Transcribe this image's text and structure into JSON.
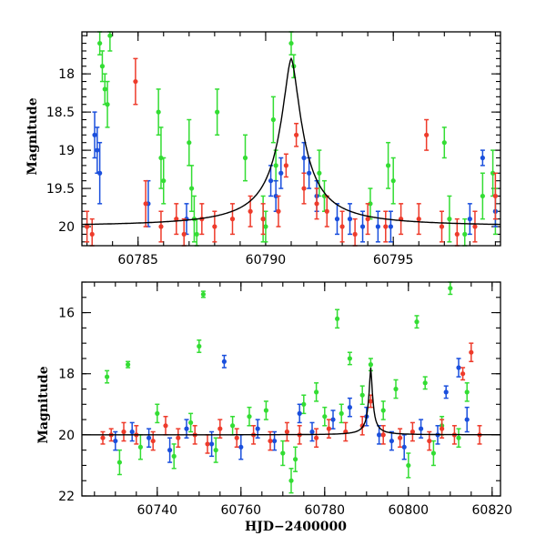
{
  "chart_data": [
    {
      "type": "scatter",
      "panel": "top",
      "ylabel": "Magnitude",
      "xlabel": "",
      "xlim": [
        60782.8,
        60799.2
      ],
      "ylim": [
        20.25,
        17.45
      ],
      "y_inverted": true,
      "xticks": [
        "60785",
        "60790",
        "60795"
      ],
      "yticks": [
        "18",
        "18.5",
        "19",
        "19.5",
        "20"
      ],
      "colors": {
        "g": "#33dd33",
        "b": "#1a4fdd",
        "r": "#ee3b2b"
      },
      "model_curve": {
        "baseline_mag": 20.0,
        "peak_mag": 17.8,
        "peak_time": 60791.0
      },
      "series": [
        {
          "color_key": "g",
          "points": [
            [
              60783.5,
              17.6,
              0.15
            ],
            [
              60783.6,
              17.9,
              0.2
            ],
            [
              60783.7,
              18.2,
              0.2
            ],
            [
              60783.8,
              18.4,
              0.3
            ],
            [
              60783.9,
              17.5,
              0.2
            ],
            [
              60785.8,
              18.5,
              0.3
            ],
            [
              60785.9,
              19.1,
              0.4
            ],
            [
              60786.0,
              19.4,
              0.3
            ],
            [
              60787.0,
              18.9,
              0.3
            ],
            [
              60787.1,
              19.5,
              0.3
            ],
            [
              60787.2,
              19.9,
              0.3
            ],
            [
              60787.3,
              20.1,
              0.2
            ],
            [
              60788.1,
              18.5,
              0.3
            ],
            [
              60789.2,
              19.1,
              0.3
            ],
            [
              60789.9,
              19.9,
              0.3
            ],
            [
              60790.0,
              20.0,
              0.2
            ],
            [
              60790.3,
              18.6,
              0.3
            ],
            [
              60790.4,
              19.2,
              0.2
            ],
            [
              60791.0,
              17.6,
              0.15
            ],
            [
              60791.1,
              17.9,
              0.15
            ],
            [
              60792.1,
              19.3,
              0.3
            ],
            [
              60792.3,
              19.6,
              0.2
            ],
            [
              60794.1,
              19.7,
              0.2
            ],
            [
              60794.8,
              19.2,
              0.3
            ],
            [
              60795.0,
              19.4,
              0.3
            ],
            [
              60797.0,
              18.9,
              0.2
            ],
            [
              60797.2,
              19.9,
              0.3
            ],
            [
              60797.8,
              20.1,
              0.2
            ],
            [
              60798.5,
              19.6,
              0.3
            ],
            [
              60798.9,
              19.3,
              0.3
            ],
            [
              60799.0,
              19.8,
              0.3
            ]
          ]
        },
        {
          "color_key": "b",
          "points": [
            [
              60783.3,
              18.8,
              0.3
            ],
            [
              60783.4,
              19.0,
              0.3
            ],
            [
              60783.5,
              19.3,
              0.4
            ],
            [
              60785.4,
              19.7,
              0.3
            ],
            [
              60786.9,
              19.9,
              0.2
            ],
            [
              60790.2,
              19.4,
              0.2
            ],
            [
              60790.4,
              19.6,
              0.2
            ],
            [
              60790.6,
              19.3,
              0.2
            ],
            [
              60791.5,
              19.1,
              0.2
            ],
            [
              60791.7,
              19.3,
              0.2
            ],
            [
              60792.0,
              19.6,
              0.2
            ],
            [
              60792.8,
              19.9,
              0.2
            ],
            [
              60793.3,
              19.9,
              0.2
            ],
            [
              60793.8,
              20.0,
              0.2
            ],
            [
              60794.4,
              20.0,
              0.2
            ],
            [
              60794.9,
              20.0,
              0.2
            ],
            [
              60798.0,
              19.9,
              0.2
            ],
            [
              60798.5,
              19.1,
              0.1
            ],
            [
              60799.0,
              19.8,
              0.2
            ]
          ]
        },
        {
          "color_key": "r",
          "points": [
            [
              60783.0,
              20.0,
              0.2
            ],
            [
              60783.2,
              20.1,
              0.2
            ],
            [
              60784.9,
              18.1,
              0.3
            ],
            [
              60785.3,
              19.7,
              0.3
            ],
            [
              60785.9,
              20.0,
              0.2
            ],
            [
              60786.5,
              19.9,
              0.2
            ],
            [
              60786.8,
              20.1,
              0.2
            ],
            [
              60787.5,
              19.9,
              0.2
            ],
            [
              60788.0,
              20.0,
              0.2
            ],
            [
              60788.7,
              19.9,
              0.2
            ],
            [
              60789.4,
              19.8,
              0.2
            ],
            [
              60789.9,
              19.9,
              0.2
            ],
            [
              60790.5,
              19.8,
              0.2
            ],
            [
              60790.8,
              19.2,
              0.15
            ],
            [
              60791.2,
              18.8,
              0.15
            ],
            [
              60791.5,
              19.5,
              0.2
            ],
            [
              60792.0,
              19.7,
              0.2
            ],
            [
              60792.4,
              19.8,
              0.2
            ],
            [
              60793.0,
              20.0,
              0.2
            ],
            [
              60793.5,
              20.1,
              0.2
            ],
            [
              60794.0,
              19.9,
              0.2
            ],
            [
              60794.7,
              20.0,
              0.2
            ],
            [
              60795.3,
              19.9,
              0.2
            ],
            [
              60796.0,
              19.9,
              0.2
            ],
            [
              60796.3,
              18.8,
              0.2
            ],
            [
              60796.9,
              20.0,
              0.2
            ],
            [
              60797.5,
              20.1,
              0.2
            ],
            [
              60798.2,
              20.0,
              0.2
            ],
            [
              60799.0,
              19.6,
              0.3
            ]
          ]
        }
      ]
    },
    {
      "type": "scatter",
      "panel": "bottom",
      "ylabel": "Magnitude",
      "xlabel": "HJD−2400000",
      "xlim": [
        60722,
        60822
      ],
      "ylim": [
        22.0,
        15.0
      ],
      "y_inverted": true,
      "xticks": [
        "60740",
        "60760",
        "60780",
        "60800",
        "60820"
      ],
      "yticks": [
        "16",
        "18",
        "20",
        "22"
      ],
      "colors": {
        "g": "#33dd33",
        "b": "#1a4fdd",
        "r": "#ee3b2b"
      },
      "model_curve": {
        "baseline_mag": 20.0,
        "peak_mag": 17.8,
        "peak_time": 60791.0
      },
      "series": [
        {
          "color_key": "g",
          "points": [
            [
              60728,
              18.1,
              0.2
            ],
            [
              60731,
              20.9,
              0.4
            ],
            [
              60733,
              17.7,
              0.1
            ],
            [
              60736,
              20.4,
              0.4
            ],
            [
              60740,
              19.3,
              0.3
            ],
            [
              60744,
              20.7,
              0.4
            ],
            [
              60748,
              19.6,
              0.3
            ],
            [
              60750,
              17.1,
              0.2
            ],
            [
              60751,
              15.4,
              0.1
            ],
            [
              60754,
              20.5,
              0.4
            ],
            [
              60758,
              19.7,
              0.3
            ],
            [
              60762,
              19.4,
              0.3
            ],
            [
              60766,
              19.2,
              0.3
            ],
            [
              60770,
              20.6,
              0.4
            ],
            [
              60772,
              21.5,
              0.4
            ],
            [
              60773,
              20.8,
              0.4
            ],
            [
              60775,
              19.0,
              0.3
            ],
            [
              60778,
              18.6,
              0.3
            ],
            [
              60780,
              19.4,
              0.3
            ],
            [
              60783,
              16.2,
              0.3
            ],
            [
              60784,
              19.3,
              0.3
            ],
            [
              60786,
              17.5,
              0.2
            ],
            [
              60789,
              18.7,
              0.3
            ],
            [
              60791,
              17.7,
              0.2
            ],
            [
              60794,
              19.2,
              0.3
            ],
            [
              60797,
              18.5,
              0.3
            ],
            [
              60800,
              21.0,
              0.4
            ],
            [
              60802,
              16.3,
              0.2
            ],
            [
              60804,
              18.3,
              0.2
            ],
            [
              60806,
              20.6,
              0.4
            ],
            [
              60808,
              19.7,
              0.3
            ],
            [
              60810,
              15.2,
              0.2
            ],
            [
              60812,
              20.1,
              0.3
            ],
            [
              60814,
              18.6,
              0.3
            ]
          ]
        },
        {
          "color_key": "b",
          "points": [
            [
              60730,
              20.2,
              0.3
            ],
            [
              60734,
              19.9,
              0.3
            ],
            [
              60738,
              20.1,
              0.3
            ],
            [
              60743,
              20.5,
              0.4
            ],
            [
              60747,
              19.8,
              0.3
            ],
            [
              60753,
              20.3,
              0.4
            ],
            [
              60756,
              17.6,
              0.2
            ],
            [
              60760,
              20.4,
              0.4
            ],
            [
              60764,
              19.8,
              0.3
            ],
            [
              60768,
              20.2,
              0.3
            ],
            [
              60774,
              19.3,
              0.3
            ],
            [
              60777,
              19.9,
              0.3
            ],
            [
              60782,
              19.5,
              0.3
            ],
            [
              60786,
              19.1,
              0.3
            ],
            [
              60790,
              19.4,
              0.3
            ],
            [
              60793,
              20.0,
              0.3
            ],
            [
              60796,
              20.2,
              0.3
            ],
            [
              60799,
              20.4,
              0.4
            ],
            [
              60803,
              19.8,
              0.3
            ],
            [
              60807,
              20.0,
              0.3
            ],
            [
              60809,
              18.6,
              0.2
            ],
            [
              60812,
              17.8,
              0.3
            ],
            [
              60814,
              19.5,
              0.4
            ]
          ]
        },
        {
          "color_key": "r",
          "points": [
            [
              60727,
              20.1,
              0.2
            ],
            [
              60729,
              20.0,
              0.2
            ],
            [
              60732,
              19.9,
              0.3
            ],
            [
              60735,
              20.0,
              0.3
            ],
            [
              60739,
              20.2,
              0.3
            ],
            [
              60742,
              19.7,
              0.3
            ],
            [
              60745,
              20.1,
              0.3
            ],
            [
              60749,
              20.0,
              0.3
            ],
            [
              60752,
              20.3,
              0.3
            ],
            [
              60755,
              19.8,
              0.3
            ],
            [
              60759,
              20.1,
              0.3
            ],
            [
              60763,
              20.0,
              0.3
            ],
            [
              60767,
              20.2,
              0.3
            ],
            [
              60771,
              19.9,
              0.3
            ],
            [
              60774,
              20.0,
              0.3
            ],
            [
              60778,
              20.1,
              0.3
            ],
            [
              60781,
              19.8,
              0.3
            ],
            [
              60785,
              19.9,
              0.3
            ],
            [
              60789,
              19.7,
              0.3
            ],
            [
              60791,
              18.9,
              0.2
            ],
            [
              60794,
              20.0,
              0.3
            ],
            [
              60798,
              20.1,
              0.3
            ],
            [
              60801,
              19.9,
              0.3
            ],
            [
              60805,
              20.2,
              0.3
            ],
            [
              60808,
              19.8,
              0.3
            ],
            [
              60811,
              20.0,
              0.3
            ],
            [
              60813,
              18.0,
              0.2
            ],
            [
              60815,
              17.3,
              0.3
            ],
            [
              60817,
              20.0,
              0.3
            ]
          ]
        }
      ]
    }
  ]
}
